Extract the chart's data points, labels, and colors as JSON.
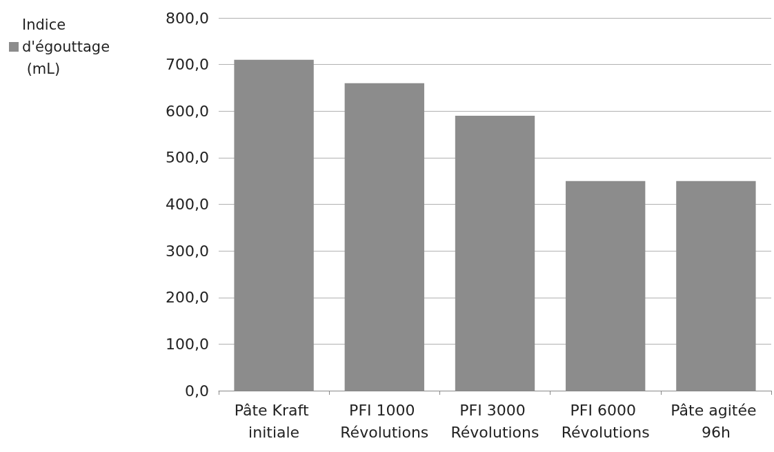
{
  "chart_data": {
    "type": "bar",
    "categories": [
      "Pâte Kraft initiale",
      "PFI 1000 Révolutions",
      "PFI 3000 Révolutions",
      "PFI 6000 Révolutions",
      "Pâte agitée 96h"
    ],
    "series": [
      {
        "name": "Indice d'égouttage (mL)",
        "color": "#8c8c8c",
        "values": [
          710,
          660,
          590,
          450,
          450
        ]
      }
    ],
    "ylim": [
      0,
      800
    ],
    "yticks": [
      {
        "value": 0,
        "label": "0,0"
      },
      {
        "value": 100,
        "label": "100,0"
      },
      {
        "value": 200,
        "label": "200,0"
      },
      {
        "value": 300,
        "label": "300,0"
      },
      {
        "value": 400,
        "label": "400,0"
      },
      {
        "value": 500,
        "label": "500,0"
      },
      {
        "value": 600,
        "label": "600,0"
      },
      {
        "value": 700,
        "label": "700,0"
      },
      {
        "value": 800,
        "label": "800,0"
      }
    ],
    "grid": "y",
    "legend": "top left"
  }
}
